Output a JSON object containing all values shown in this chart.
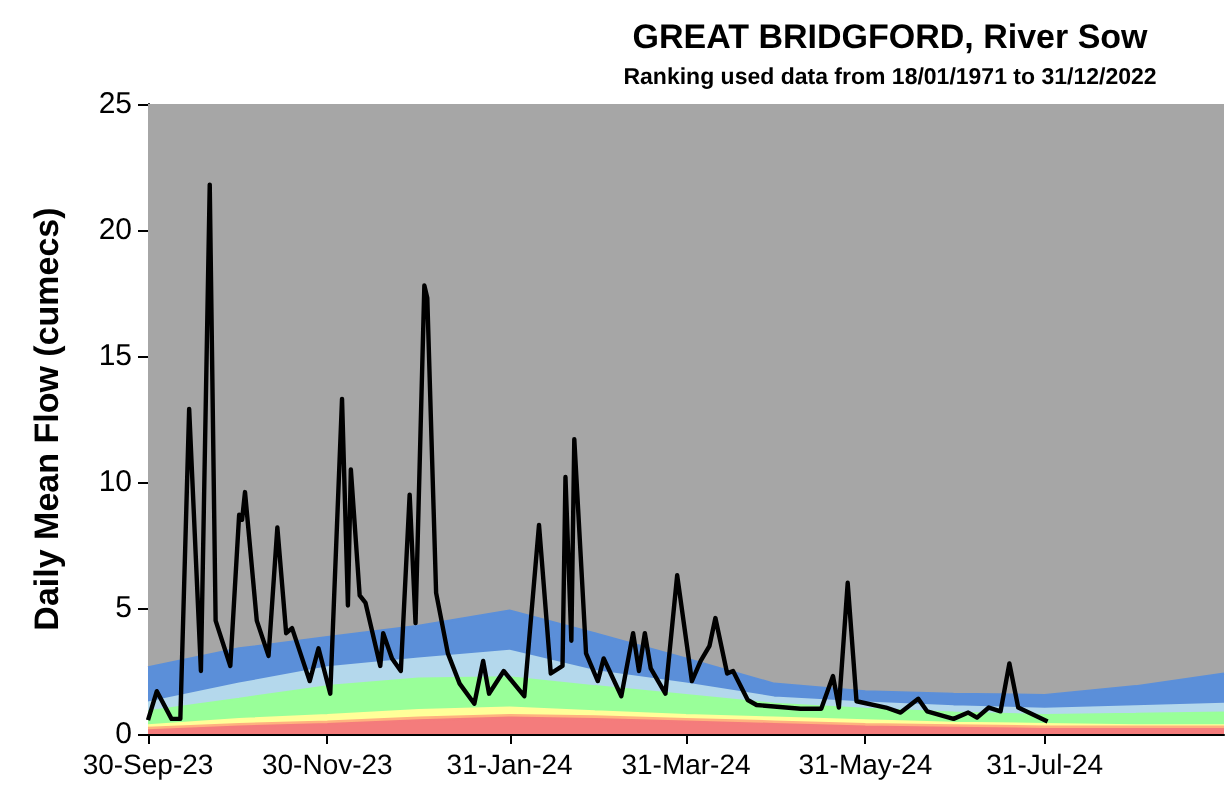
{
  "chart_data": {
    "type": "area",
    "title": "GREAT BRIDGFORD, River Sow",
    "subtitle": "Ranking used data from 18/01/1971 to 31/12/2022",
    "ylabel": "Daily Mean Flow (cumecs)",
    "stacked": true,
    "bands": [
      {
        "axis": "y",
        "from": 0,
        "to": 25,
        "color": "#a6a6a6"
      }
    ],
    "xlim": [
      "2023-09-30",
      "2024-09-30"
    ],
    "xticks": [
      {
        "value": "2023-09-30",
        "label": "30-Sep-23"
      },
      {
        "value": "2023-11-30",
        "label": "30-Nov-23"
      },
      {
        "value": "2024-01-31",
        "label": "31-Jan-24"
      },
      {
        "value": "2024-03-31",
        "label": "31-Mar-24"
      },
      {
        "value": "2024-05-31",
        "label": "31-May-24"
      },
      {
        "value": "2024-07-31",
        "label": "31-Jul-24"
      }
    ],
    "ylim": [
      0,
      25
    ],
    "yticks": [
      0,
      5,
      10,
      15,
      20,
      25
    ],
    "x": [
      "2023-09-30",
      "2023-10-31",
      "2023-11-30",
      "2023-12-31",
      "2024-01-31",
      "2024-02-29",
      "2024-03-31",
      "2024-04-30",
      "2024-05-31",
      "2024-06-30",
      "2024-07-31",
      "2024-08-31",
      "2024-09-30"
    ],
    "series": [
      {
        "color": "#f47c7c",
        "values": [
          0.15,
          0.3,
          0.4,
          0.55,
          0.65,
          0.6,
          0.5,
          0.4,
          0.3,
          0.25,
          0.2,
          0.2,
          0.2
        ]
      },
      {
        "color": "#ffb27f",
        "values": [
          0.1,
          0.1,
          0.1,
          0.1,
          0.1,
          0.1,
          0.1,
          0.1,
          0.1,
          0.1,
          0.1,
          0.1,
          0.1
        ]
      },
      {
        "color": "#ffff99",
        "values": [
          0.1,
          0.2,
          0.25,
          0.3,
          0.3,
          0.2,
          0.15,
          0.15,
          0.15,
          0.1,
          0.1,
          0.05,
          0.05
        ]
      },
      {
        "color": "#99ff99",
        "values": [
          0.55,
          0.8,
          1.15,
          1.25,
          1.2,
          1.0,
          0.8,
          0.55,
          0.45,
          0.4,
          0.35,
          0.45,
          0.5
        ]
      },
      {
        "color": "#b4d8ec",
        "values": [
          0.35,
          0.6,
          0.75,
          0.8,
          1.05,
          0.6,
          0.45,
          0.25,
          0.25,
          0.25,
          0.25,
          0.3,
          0.35
        ]
      },
      {
        "color": "#5b8fd9",
        "values": [
          1.4,
          1.4,
          1.2,
          1.3,
          1.6,
          1.5,
          1.0,
          0.55,
          0.45,
          0.5,
          0.55,
          0.8,
          1.2
        ]
      },
      {
        "type": "line",
        "color": "#000000",
        "marker": "none",
        "line_style": "solid",
        "x": [
          "2023-09-30",
          "2023-10-03",
          "2023-10-08",
          "2023-10-11",
          "2023-10-14",
          "2023-10-18",
          "2023-10-21",
          "2023-10-23",
          "2023-10-28",
          "2023-10-31",
          "2023-11-01",
          "2023-11-02",
          "2023-11-06",
          "2023-11-10",
          "2023-11-13",
          "2023-11-16",
          "2023-11-18",
          "2023-11-24",
          "2023-11-27",
          "2023-12-01",
          "2023-12-05",
          "2023-12-07",
          "2023-12-08",
          "2023-12-11",
          "2023-12-13",
          "2023-12-18",
          "2023-12-19",
          "2023-12-22",
          "2023-12-25",
          "2023-12-28",
          "2023-12-30",
          "2024-01-02",
          "2024-01-03",
          "2024-01-06",
          "2024-01-10",
          "2024-01-14",
          "2024-01-19",
          "2024-01-22",
          "2024-01-24",
          "2024-01-29",
          "2024-02-05",
          "2024-02-10",
          "2024-02-14",
          "2024-02-18",
          "2024-02-19",
          "2024-02-21",
          "2024-02-22",
          "2024-02-26",
          "2024-03-01",
          "2024-03-03",
          "2024-03-09",
          "2024-03-13",
          "2024-03-15",
          "2024-03-17",
          "2024-03-19",
          "2024-03-24",
          "2024-03-28",
          "2024-04-02",
          "2024-04-05",
          "2024-04-08",
          "2024-04-10",
          "2024-04-14",
          "2024-04-16",
          "2024-04-21",
          "2024-04-24",
          "2024-05-09",
          "2024-05-16",
          "2024-05-20",
          "2024-05-22",
          "2024-05-25",
          "2024-05-28",
          "2024-06-07",
          "2024-06-12",
          "2024-06-18",
          "2024-06-21",
          "2024-06-30",
          "2024-07-05",
          "2024-07-08",
          "2024-07-12",
          "2024-07-16",
          "2024-07-19",
          "2024-07-22",
          "2024-08-01"
        ],
        "values": [
          0.55,
          1.7,
          0.6,
          0.6,
          12.9,
          2.5,
          21.8,
          4.5,
          2.7,
          8.7,
          8.5,
          9.6,
          4.5,
          3.1,
          8.2,
          4.0,
          4.2,
          2.1,
          3.4,
          1.6,
          13.3,
          5.1,
          10.5,
          5.5,
          5.2,
          2.7,
          4.0,
          3.0,
          2.5,
          9.5,
          4.4,
          17.8,
          17.3,
          5.6,
          3.2,
          2.0,
          1.2,
          2.9,
          1.6,
          2.5,
          1.5,
          8.3,
          2.4,
          2.7,
          10.2,
          3.7,
          11.7,
          3.2,
          2.1,
          3.0,
          1.5,
          4.0,
          2.5,
          4.0,
          2.6,
          1.6,
          6.3,
          2.1,
          2.9,
          3.5,
          4.6,
          2.4,
          2.5,
          1.35,
          1.15,
          1.0,
          1.0,
          2.3,
          1.05,
          6.0,
          1.3,
          1.05,
          0.85,
          1.4,
          0.9,
          0.6,
          0.85,
          0.65,
          1.05,
          0.9,
          2.8,
          1.05,
          0.5
        ]
      }
    ]
  }
}
